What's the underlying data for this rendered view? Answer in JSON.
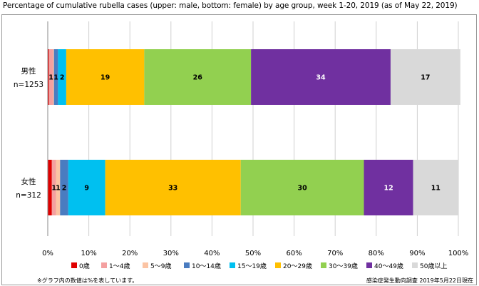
{
  "chart_data": {
    "type": "bar",
    "orientation": "horizontal",
    "stacked": true,
    "title": "Percentage of cumulative rubella cases (upper: male, bottom: female) by age group, week 1-20, 2019 (as of May 22, 2019)",
    "categories": [
      {
        "name": "男性",
        "sub": "n=1253"
      },
      {
        "name": "女性",
        "sub": "n=312"
      }
    ],
    "series": [
      {
        "name": "0歳",
        "color": "#e00000",
        "values": [
          0.3,
          1.0
        ],
        "labels": [
          "",
          ""
        ]
      },
      {
        "name": "1～4歳",
        "color": "#f4a0a0",
        "values": [
          1.0,
          1.0
        ],
        "labels": [
          "1",
          "1"
        ]
      },
      {
        "name": "5～9歳",
        "color": "#fbc4a4",
        "values": [
          0.2,
          1.0
        ],
        "labels": [
          "",
          "1"
        ]
      },
      {
        "name": "10～14歳",
        "color": "#4a7cc0",
        "values": [
          1.0,
          2.0
        ],
        "labels": [
          "1",
          "2"
        ]
      },
      {
        "name": "15～19歳",
        "color": "#00c0f0",
        "values": [
          2.0,
          9.0
        ],
        "labels": [
          "2",
          "9"
        ]
      },
      {
        "name": "20～29歳",
        "color": "#ffc000",
        "values": [
          19.0,
          33.0
        ],
        "labels": [
          "19",
          "33"
        ]
      },
      {
        "name": "30～39歳",
        "color": "#92d050",
        "values": [
          26.0,
          30.0
        ],
        "labels": [
          "26",
          "30"
        ]
      },
      {
        "name": "40～49歳",
        "color": "#7030a0",
        "values": [
          34.0,
          12.0
        ],
        "labels": [
          "34",
          "12"
        ]
      },
      {
        "name": "50歳以上",
        "color": "#d9d9d9",
        "values": [
          17.0,
          11.0
        ],
        "labels": [
          "17",
          "11"
        ]
      }
    ],
    "x_ticks": [
      "0%",
      "10%",
      "20%",
      "30%",
      "40%",
      "50%",
      "60%",
      "70%",
      "80%",
      "90%",
      "100%"
    ],
    "xlim": [
      0,
      100
    ],
    "grid": true,
    "legend": "bottom",
    "footnote_left": "※グラフ内の数値は%を表しています。",
    "footnote_right": "感染症発生動向調査 2019年5月22日現在"
  }
}
